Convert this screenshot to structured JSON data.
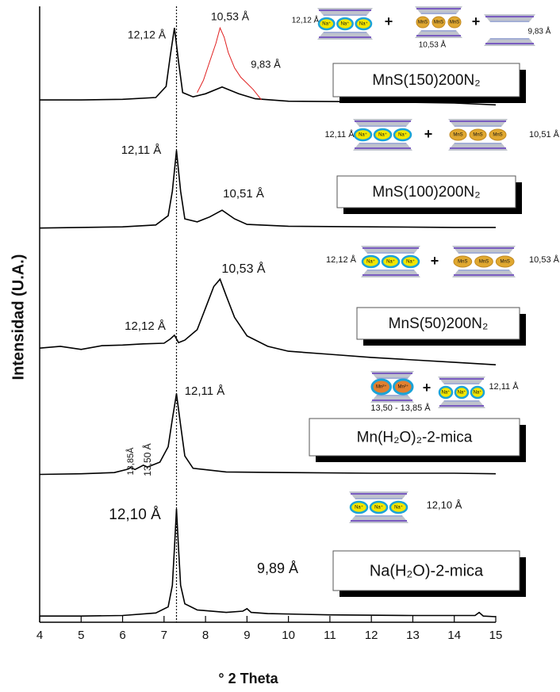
{
  "chart_data": {
    "type": "line",
    "xlabel": "° 2 Theta",
    "ylabel": "Intensidad (U.A.)",
    "xlim": [
      4,
      15
    ],
    "xticks": [
      4,
      5,
      6,
      7,
      8,
      9,
      10,
      11,
      12,
      13,
      14,
      15
    ],
    "ylim": [
      0,
      100
    ],
    "reference_x": 7.3,
    "series": [
      {
        "name": "Na(H₂O)-2-mica",
        "color": "#000000",
        "x": [
          4,
          5,
          6,
          6.8,
          7.1,
          7.2,
          7.25,
          7.3,
          7.35,
          7.4,
          7.5,
          7.8,
          8.5,
          8.9,
          9.0,
          9.1,
          9.5,
          11,
          13,
          14.5,
          14.6,
          14.7,
          15
        ],
        "values": [
          1.0,
          1.0,
          1.1,
          1.5,
          2.5,
          6,
          12,
          18.4,
          12,
          6,
          3,
          2,
          1.6,
          1.8,
          2.2,
          1.6,
          1.4,
          1.2,
          1.1,
          1.1,
          1.6,
          1.0,
          0.9
        ]
      },
      {
        "name": "Mn(H₂O)₂-2-mica",
        "color": "#000000",
        "x": [
          4,
          5,
          5.8,
          6.1,
          6.2,
          6.3,
          6.5,
          6.6,
          6.9,
          7.1,
          7.2,
          7.3,
          7.4,
          7.5,
          7.7,
          8.5,
          10,
          12,
          14,
          15
        ],
        "values": [
          24.0,
          24.1,
          24.3,
          24.8,
          25.1,
          24.8,
          25.5,
          25.2,
          26.0,
          28.5,
          33,
          37.1,
          32,
          27,
          25,
          24.4,
          24.3,
          24.2,
          24.2,
          24.1
        ]
      },
      {
        "name": "MnS(50)200N₂",
        "color": "#000000",
        "x": [
          4,
          4.5,
          5,
          5.5,
          6,
          6.5,
          7,
          7.15,
          7.25,
          7.35,
          7.5,
          7.8,
          8.0,
          8.2,
          8.35,
          8.5,
          8.7,
          9.0,
          9.5,
          10,
          11,
          12,
          13,
          14,
          15
        ],
        "values": [
          44.5,
          44.8,
          44.3,
          44.9,
          45.0,
          45.2,
          45.3,
          46.0,
          46.6,
          45.4,
          45.8,
          47.5,
          51,
          54.5,
          55.7,
          53,
          49.5,
          46.5,
          44.8,
          44.0,
          43.5,
          43.0,
          42.6,
          42.2,
          41.8
        ]
      },
      {
        "name": "MnS(100)200N₂",
        "color": "#000000",
        "x": [
          4,
          5,
          6,
          6.8,
          7.1,
          7.2,
          7.3,
          7.4,
          7.5,
          7.8,
          8.1,
          8.4,
          8.7,
          9.0,
          10,
          12,
          14,
          15
        ],
        "values": [
          64.0,
          64.1,
          64.2,
          64.5,
          66,
          70,
          76.6,
          70,
          65.5,
          65,
          65.8,
          66.9,
          65.5,
          64.6,
          64.3,
          64.2,
          64.1,
          64.1
        ]
      },
      {
        "name": "MnS(150)200N₂",
        "color": "#000000",
        "x": [
          4,
          5,
          6,
          6.8,
          7.05,
          7.15,
          7.25,
          7.35,
          7.45,
          7.7,
          8.0,
          8.4,
          8.8,
          9.2,
          10,
          12,
          14,
          15
        ],
        "values": [
          84.8,
          84.8,
          84.9,
          85.2,
          87,
          92,
          96.5,
          91,
          86,
          85.3,
          85.8,
          86.9,
          85.8,
          85.0,
          84.6,
          84.5,
          84.3,
          84.0
        ]
      },
      {
        "color": "#e02020",
        "x": [
          7.8,
          7.95,
          8.1,
          8.25,
          8.35,
          8.45,
          8.55,
          8.7,
          8.85,
          9.0,
          9.15,
          9.35
        ],
        "values": [
          86.0,
          88,
          91,
          94,
          96.5,
          95,
          92.5,
          90,
          88.5,
          87.5,
          86.5,
          84.8
        ]
      }
    ],
    "annotations": [
      "12,12 Å",
      "10,53 Å",
      "9,83 Å",
      "12,11 Å",
      "10,51 Å",
      "10,53 Å",
      "12,12 Å",
      "12,11 Å",
      "13,85Å",
      "13,50 Å",
      "12,10 Å",
      "9,89 Å",
      "12,12 Å",
      "10,53 Å",
      "9,83 Å",
      "12,11 Å",
      "10,51 Å",
      "12,12 Å",
      "10,53 Å",
      "13,50 - 13,85 Å",
      "12,11 Å",
      "12,10 Å"
    ],
    "schematic_labels": [
      "Na⁺",
      "MnS",
      "Mn²⁺",
      "+"
    ]
  }
}
